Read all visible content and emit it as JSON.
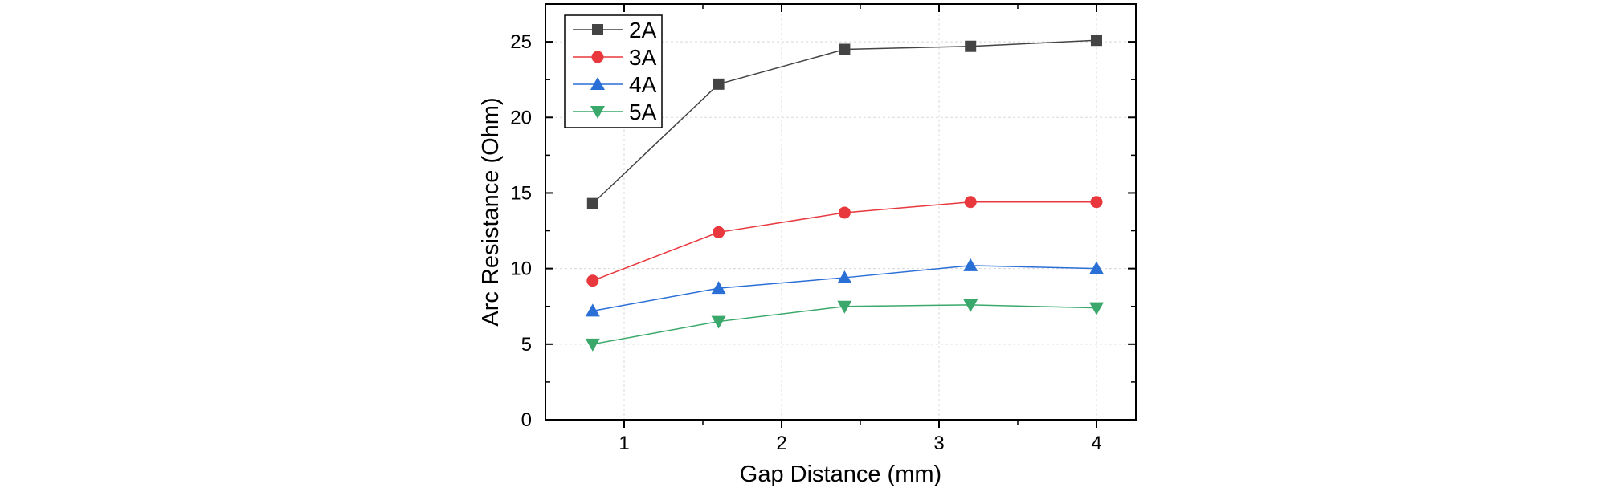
{
  "chart_data": {
    "type": "line",
    "title": "",
    "xlabel": "Gap Distance (mm)",
    "ylabel": "Arc Resistance (Ohm)",
    "xlim": [
      0.5,
      4.25
    ],
    "ylim": [
      0,
      27.5
    ],
    "xticks": [
      1,
      2,
      3,
      4
    ],
    "yticks": [
      0,
      5,
      10,
      15,
      20,
      25
    ],
    "grid": true,
    "legend_position": "top-left",
    "x": [
      0.8,
      1.6,
      2.4,
      3.2,
      4.0
    ],
    "series": [
      {
        "name": "2A",
        "color": "#444444",
        "marker": "square",
        "values": [
          14.3,
          22.2,
          24.5,
          24.7,
          25.1
        ]
      },
      {
        "name": "3A",
        "color": "#e8383d",
        "marker": "circle",
        "values": [
          9.2,
          12.4,
          13.7,
          14.4,
          14.4
        ]
      },
      {
        "name": "4A",
        "color": "#2a6fd6",
        "marker": "triangle-up",
        "values": [
          7.2,
          8.7,
          9.4,
          10.2,
          10.0
        ]
      },
      {
        "name": "5A",
        "color": "#3aa86a",
        "marker": "triangle-down",
        "values": [
          5.0,
          6.5,
          7.5,
          7.6,
          7.4
        ]
      }
    ]
  }
}
